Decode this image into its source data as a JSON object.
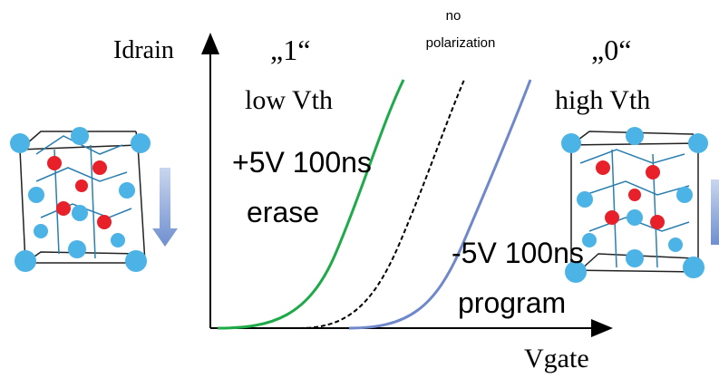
{
  "labels": {
    "y_axis": "Idrain",
    "x_axis": "Vgate"
  },
  "left_state": {
    "symbol": "„1“",
    "description": "low Vth",
    "pulse": "+5V 100ns",
    "operation": "erase"
  },
  "middle": {
    "line1": "no",
    "line2": "polarization"
  },
  "right_state": {
    "symbol": "„0“",
    "description": "high Vth",
    "pulse": "-5V 100ns",
    "operation": "program"
  }
}
